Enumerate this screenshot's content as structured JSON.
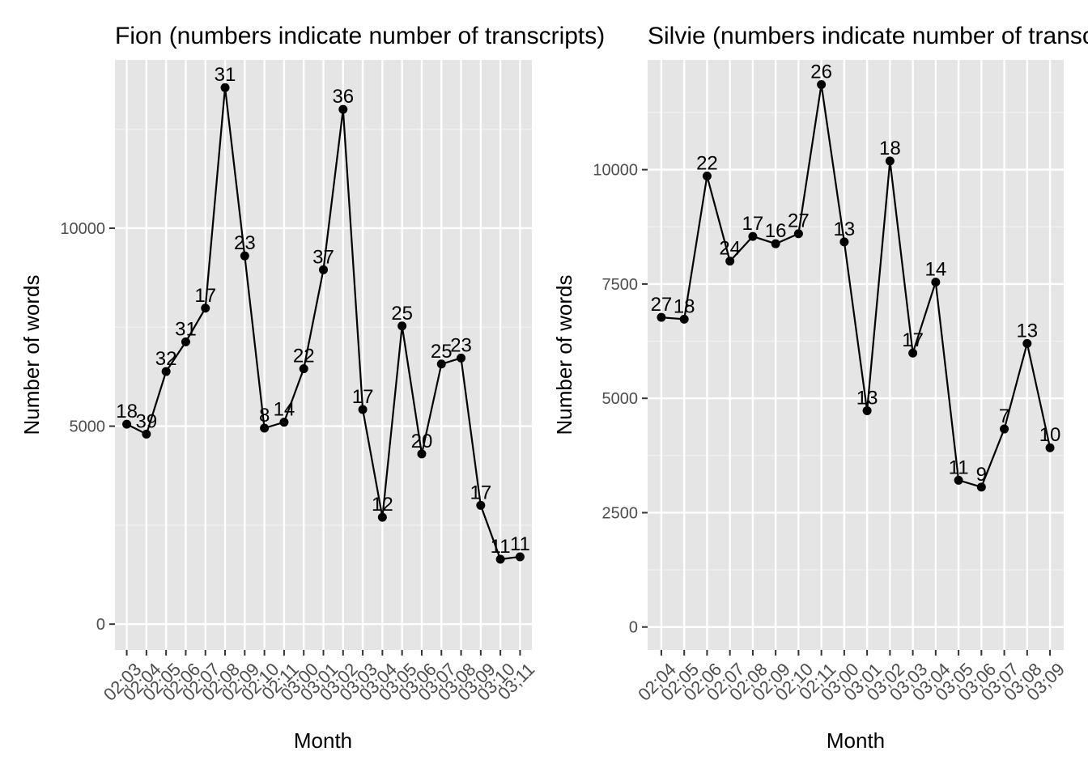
{
  "chart_data": [
    {
      "type": "line",
      "title": "Fion (numbers indicate number of transcripts)",
      "xlabel": "Month",
      "ylabel": "Number of words",
      "categories": [
        "02;03",
        "02;04",
        "02;05",
        "02;06",
        "02;07",
        "02;08",
        "02;09",
        "02;10",
        "02;11",
        "03;00",
        "03;01",
        "03;02",
        "03;03",
        "03;04",
        "03;05",
        "03;06",
        "03;07",
        "03;08",
        "03;09",
        "03;10",
        "03;11"
      ],
      "values": [
        5050,
        4800,
        6380,
        7130,
        7980,
        13550,
        9300,
        4950,
        5100,
        6450,
        8950,
        13000,
        5420,
        2700,
        7530,
        4300,
        6570,
        6720,
        3000,
        1640,
        1700
      ],
      "point_labels": [
        "18",
        "39",
        "32",
        "31",
        "17",
        "31",
        "23",
        "8",
        "14",
        "22",
        "37",
        "36",
        "17",
        "12",
        "25",
        "20",
        "25",
        "23",
        "17",
        "11",
        "11"
      ],
      "yticks": [
        0,
        5000,
        10000
      ],
      "ytick_labels": [
        "0",
        "5000",
        "10000"
      ],
      "ylim": [
        -650,
        14250
      ],
      "grid": true,
      "background": "#e5e5e5",
      "line_color": "#000000"
    },
    {
      "type": "line",
      "title": "Silvie (numbers indicate number of transcripts)",
      "xlabel": "Month",
      "ylabel": "Number of words",
      "categories": [
        "02;04",
        "02;05",
        "02;06",
        "02;07",
        "02;08",
        "02;09",
        "02;10",
        "02;11",
        "03;00",
        "03;01",
        "03;02",
        "03;03",
        "03;04",
        "03;05",
        "03;06",
        "03;07",
        "03;08",
        "03;09"
      ],
      "values": [
        6770,
        6730,
        9860,
        8000,
        8540,
        8380,
        8600,
        11860,
        8420,
        4730,
        10190,
        5990,
        7540,
        3210,
        3060,
        4330,
        6200,
        3920
      ],
      "point_labels": [
        "27",
        "18",
        "22",
        "24",
        "17",
        "16",
        "27",
        "26",
        "13",
        "13",
        "18",
        "17",
        "14",
        "11",
        "9",
        "7",
        "13",
        "10"
      ],
      "yticks": [
        0,
        2500,
        5000,
        7500,
        10000
      ],
      "ytick_labels": [
        "0",
        "2500",
        "5000",
        "7500",
        "10000"
      ],
      "ylim": [
        -500,
        12400
      ],
      "grid": true,
      "background": "#e5e5e5",
      "line_color": "#000000"
    }
  ]
}
